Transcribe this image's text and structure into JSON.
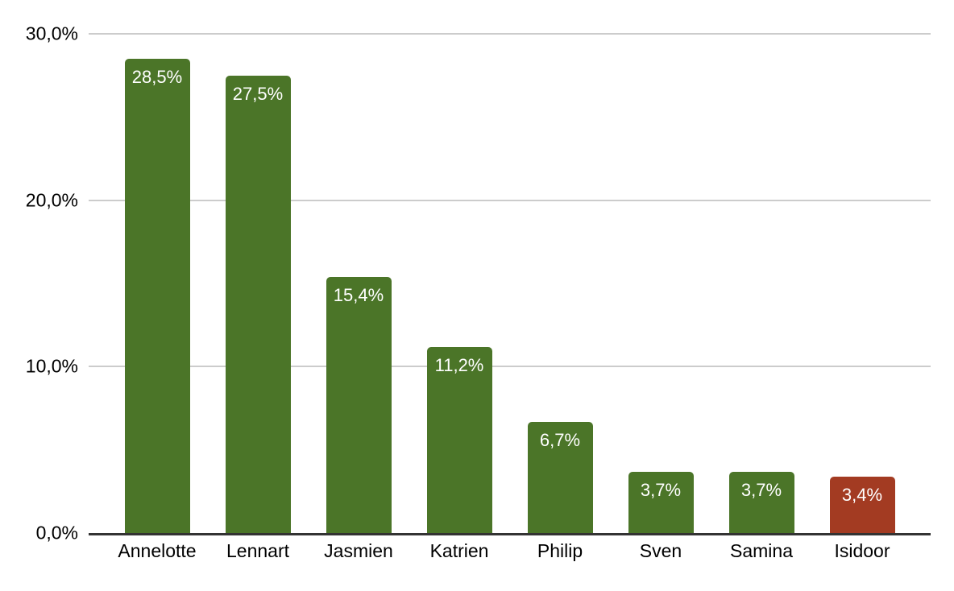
{
  "chart_data": {
    "type": "bar",
    "title": "",
    "xlabel": "",
    "ylabel": "",
    "categories": [
      "Annelotte",
      "Lennart",
      "Jasmien",
      "Katrien",
      "Philip",
      "Sven",
      "Samina",
      "Isidoor"
    ],
    "values": [
      28.5,
      27.5,
      15.4,
      11.2,
      6.7,
      3.7,
      3.7,
      3.4
    ],
    "value_labels": [
      "28,5%",
      "27,5%",
      "15,4%",
      "11,2%",
      "6,7%",
      "3,7%",
      "3,7%",
      "3,4%"
    ],
    "bar_colors": [
      "#4b7528",
      "#4b7528",
      "#4b7528",
      "#4b7528",
      "#4b7528",
      "#4b7528",
      "#4b7528",
      "#a33b22"
    ],
    "highlighted_category": "Isidoor",
    "ylim": [
      0,
      30
    ],
    "y_ticks": [
      {
        "value": 30,
        "label": "30,0%"
      },
      {
        "value": 20,
        "label": "20,0%"
      },
      {
        "value": 10,
        "label": "10,0%"
      },
      {
        "value": 0,
        "label": "0,0%"
      }
    ],
    "grid": true,
    "legend_position": "none"
  },
  "colors": {
    "bar_green": "#4b7528",
    "bar_red": "#a33b22",
    "gridline": "#cccccc",
    "axis_line": "#333333",
    "axis_text": "#000000",
    "value_text": "#ffffff",
    "background": "#ffffff"
  }
}
